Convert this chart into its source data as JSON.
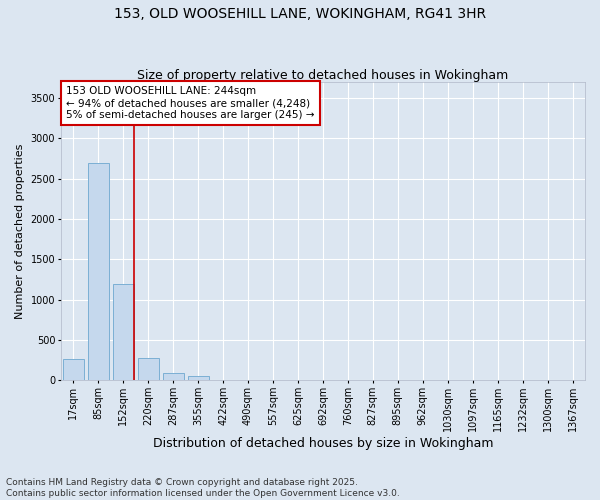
{
  "title_line1": "153, OLD WOOSEHILL LANE, WOKINGHAM, RG41 3HR",
  "title_line2": "Size of property relative to detached houses in Wokingham",
  "xlabel": "Distribution of detached houses by size in Wokingham",
  "ylabel": "Number of detached properties",
  "bar_color": "#c5d8ed",
  "bar_edge_color": "#7bafd4",
  "background_color": "#dce6f1",
  "categories": [
    "17sqm",
    "85sqm",
    "152sqm",
    "220sqm",
    "287sqm",
    "355sqm",
    "422sqm",
    "490sqm",
    "557sqm",
    "625sqm",
    "692sqm",
    "760sqm",
    "827sqm",
    "895sqm",
    "962sqm",
    "1030sqm",
    "1097sqm",
    "1165sqm",
    "1232sqm",
    "1300sqm",
    "1367sqm"
  ],
  "values": [
    270,
    2700,
    1190,
    280,
    90,
    50,
    0,
    10,
    0,
    0,
    0,
    0,
    0,
    0,
    0,
    0,
    0,
    0,
    0,
    0,
    0
  ],
  "ylim": [
    0,
    3700
  ],
  "yticks": [
    0,
    500,
    1000,
    1500,
    2000,
    2500,
    3000,
    3500
  ],
  "red_line_bar_index": 2,
  "annotation_text_line1": "153 OLD WOOSEHILL LANE: 244sqm",
  "annotation_text_line2": "← 94% of detached houses are smaller (4,248)",
  "annotation_text_line3": "5% of semi-detached houses are larger (245) →",
  "annotation_box_color": "#ffffff",
  "annotation_border_color": "#cc0000",
  "footer_line1": "Contains HM Land Registry data © Crown copyright and database right 2025.",
  "footer_line2": "Contains public sector information licensed under the Open Government Licence v3.0.",
  "grid_color": "#ffffff",
  "title_fontsize": 10,
  "subtitle_fontsize": 9,
  "tick_fontsize": 7,
  "xlabel_fontsize": 9,
  "ylabel_fontsize": 8,
  "footer_fontsize": 6.5
}
